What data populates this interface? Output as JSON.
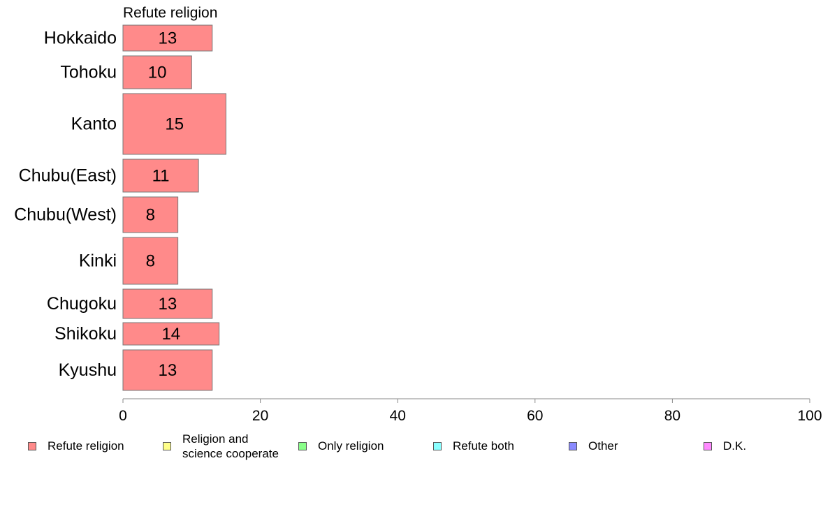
{
  "chart_data": {
    "type": "bar",
    "orientation": "horizontal",
    "title": "Refute religion",
    "categories": [
      "Hokkaido",
      "Tohoku",
      "Kanto",
      "Chubu(East)",
      "Chubu(West)",
      "Kinki",
      "Chugoku",
      "Shikoku",
      "Kyushu"
    ],
    "series": [
      {
        "name": "Refute religion",
        "values": [
          13,
          10,
          15,
          11,
          8,
          8,
          13,
          14,
          13
        ],
        "color": "#ff8a8a"
      }
    ],
    "xlim": [
      0,
      100
    ],
    "xticks": [
      0,
      20,
      40,
      60,
      80,
      100
    ],
    "grid": false,
    "legend_position": "bottom"
  },
  "legend": [
    {
      "label": "Refute religion",
      "color": "#ff8a8a"
    },
    {
      "label": "Religion and\nscience cooperate",
      "color": "#ffff8a"
    },
    {
      "label": "Only religion",
      "color": "#8aff8a"
    },
    {
      "label": "Refute both",
      "color": "#8affff"
    },
    {
      "label": "Other",
      "color": "#8a8aff"
    },
    {
      "label": "D.K.",
      "color": "#ff8aff"
    }
  ]
}
